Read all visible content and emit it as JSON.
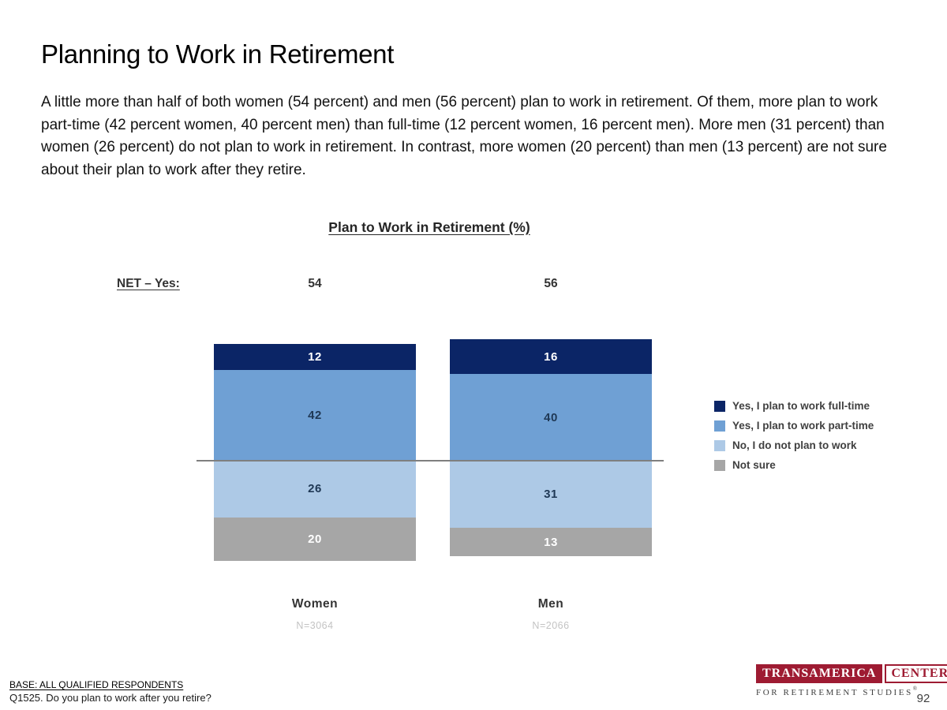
{
  "page": {
    "title": "Planning to Work in Retirement",
    "body_text": "A little more than half of both women (54 percent) and men (56 percent) plan to work in retirement. Of them, more plan to work part-time (42 percent women, 40 percent men) than full-time (12 percent women, 16 percent men). More men (31 percent) than women (26 percent) do not plan to work in retirement. In contrast, more women (20 percent) than men (13 percent) are not sure about their plan to work after they retire.",
    "page_number": "92"
  },
  "chart_data": {
    "type": "bar",
    "variant": "diverging-stacked-column",
    "title": "Plan to Work in Retirement (%)",
    "net_label": "NET – Yes:",
    "categories": [
      "Women",
      "Men"
    ],
    "bases": [
      "N=3064",
      "N=2066"
    ],
    "net_values": [
      54,
      56
    ],
    "series": [
      {
        "name": "Yes, I plan to work full-time",
        "color": "#0B2566",
        "text_color": "#FFFFFF",
        "values": [
          12,
          16
        ]
      },
      {
        "name": "Yes, I plan to work part-time",
        "color": "#6FA0D4",
        "text_color": "#1F3855",
        "values": [
          42,
          40
        ]
      },
      {
        "name": "No, I do not plan to work",
        "color": "#ADC9E6",
        "text_color": "#1F3855",
        "values": [
          26,
          31
        ]
      },
      {
        "name": "Not sure",
        "color": "#A6A6A6",
        "text_color": "#FFFFFF",
        "values": [
          20,
          13
        ]
      }
    ],
    "divider_note": "horizontal gray line separates NET Yes segments (above) from No / Not sure segments (below)",
    "divider_color": "#7F7F7F",
    "legend_position": "right",
    "ylim": [
      0,
      100
    ]
  },
  "footer": {
    "base_label": "BASE: ALL QUALIFIED RESPONDENTS",
    "question_label": "Q1525. Do you plan to work after you retire?"
  },
  "logo": {
    "primary": "TRANSAMERICA",
    "secondary": "CENTER",
    "tagline": "FOR RETIREMENT STUDIES",
    "registered": "®",
    "brand_color": "#9E1B32"
  }
}
